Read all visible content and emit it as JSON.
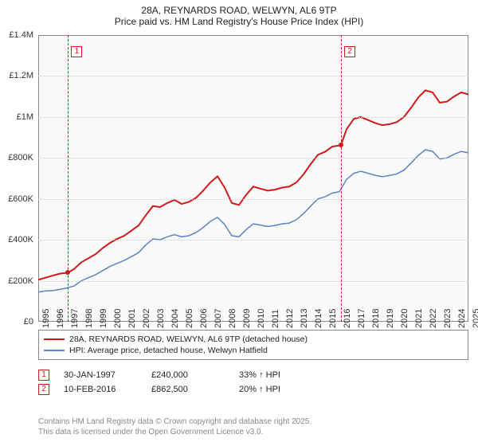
{
  "title": {
    "line1": "28A, REYNARDS ROAD, WELWYN, AL6 9TP",
    "line2": "Price paid vs. HM Land Registry's House Price Index (HPI)"
  },
  "chart": {
    "type": "line",
    "background_color": "#fafafa",
    "grid_color": "#cccccc",
    "y": {
      "min": 0,
      "max": 1400000,
      "step": 200000,
      "tick_labels": [
        "£0",
        "£200K",
        "£400K",
        "£600K",
        "£800K",
        "£1M",
        "£1.2M",
        "£1.4M"
      ]
    },
    "x": {
      "min": 1995,
      "max": 2025,
      "step": 1,
      "tick_labels": [
        "1995",
        "1996",
        "1997",
        "1998",
        "1999",
        "2000",
        "2001",
        "2002",
        "2003",
        "2004",
        "2005",
        "2006",
        "2007",
        "2008",
        "2009",
        "2010",
        "2011",
        "2012",
        "2013",
        "2014",
        "2015",
        "2016",
        "2017",
        "2018",
        "2019",
        "2020",
        "2021",
        "2022",
        "2023",
        "2024",
        "2025"
      ]
    },
    "series": [
      {
        "id": "price_paid",
        "label": "28A, REYNARDS ROAD, WELWYN, AL6 9TP (detached house)",
        "color": "#d11919",
        "width": 2,
        "points": [
          [
            1995,
            205000
          ],
          [
            1995.5,
            215000
          ],
          [
            1996,
            225000
          ],
          [
            1996.5,
            235000
          ],
          [
            1997.08,
            240000
          ],
          [
            1997.5,
            258000
          ],
          [
            1998,
            290000
          ],
          [
            1998.5,
            310000
          ],
          [
            1999,
            330000
          ],
          [
            1999.5,
            360000
          ],
          [
            2000,
            385000
          ],
          [
            2000.5,
            405000
          ],
          [
            2001,
            420000
          ],
          [
            2001.5,
            445000
          ],
          [
            2002,
            470000
          ],
          [
            2002.5,
            520000
          ],
          [
            2003,
            565000
          ],
          [
            2003.5,
            560000
          ],
          [
            2004,
            580000
          ],
          [
            2004.5,
            595000
          ],
          [
            2005,
            575000
          ],
          [
            2005.5,
            585000
          ],
          [
            2006,
            605000
          ],
          [
            2006.5,
            640000
          ],
          [
            2007,
            680000
          ],
          [
            2007.5,
            710000
          ],
          [
            2008,
            655000
          ],
          [
            2008.5,
            580000
          ],
          [
            2009,
            570000
          ],
          [
            2009.5,
            620000
          ],
          [
            2010,
            660000
          ],
          [
            2010.5,
            650000
          ],
          [
            2011,
            640000
          ],
          [
            2011.5,
            645000
          ],
          [
            2012,
            655000
          ],
          [
            2012.5,
            660000
          ],
          [
            2013,
            680000
          ],
          [
            2013.5,
            720000
          ],
          [
            2014,
            770000
          ],
          [
            2014.5,
            815000
          ],
          [
            2015,
            830000
          ],
          [
            2015.5,
            855000
          ],
          [
            2016.11,
            862500
          ],
          [
            2016.3,
            900000
          ],
          [
            2016.5,
            940000
          ],
          [
            2017,
            990000
          ],
          [
            2017.5,
            1000000
          ],
          [
            2018,
            985000
          ],
          [
            2018.5,
            970000
          ],
          [
            2019,
            960000
          ],
          [
            2019.5,
            965000
          ],
          [
            2020,
            975000
          ],
          [
            2020.5,
            1000000
          ],
          [
            2021,
            1045000
          ],
          [
            2021.5,
            1095000
          ],
          [
            2022,
            1130000
          ],
          [
            2022.5,
            1120000
          ],
          [
            2023,
            1070000
          ],
          [
            2023.5,
            1075000
          ],
          [
            2024,
            1100000
          ],
          [
            2024.5,
            1120000
          ],
          [
            2025,
            1110000
          ]
        ]
      },
      {
        "id": "hpi",
        "label": "HPI: Average price, detached house, Welwyn Hatfield",
        "color": "#5b84c4",
        "width": 1.5,
        "points": [
          [
            1995,
            145000
          ],
          [
            1995.5,
            150000
          ],
          [
            1996,
            152000
          ],
          [
            1996.5,
            158000
          ],
          [
            1997,
            165000
          ],
          [
            1997.5,
            175000
          ],
          [
            1998,
            200000
          ],
          [
            1998.5,
            215000
          ],
          [
            1999,
            230000
          ],
          [
            1999.5,
            250000
          ],
          [
            2000,
            270000
          ],
          [
            2000.5,
            285000
          ],
          [
            2001,
            300000
          ],
          [
            2001.5,
            318000
          ],
          [
            2002,
            338000
          ],
          [
            2002.5,
            375000
          ],
          [
            2003,
            405000
          ],
          [
            2003.5,
            400000
          ],
          [
            2004,
            415000
          ],
          [
            2004.5,
            425000
          ],
          [
            2005,
            415000
          ],
          [
            2005.5,
            420000
          ],
          [
            2006,
            435000
          ],
          [
            2006.5,
            460000
          ],
          [
            2007,
            490000
          ],
          [
            2007.5,
            510000
          ],
          [
            2008,
            475000
          ],
          [
            2008.5,
            420000
          ],
          [
            2009,
            415000
          ],
          [
            2009.5,
            450000
          ],
          [
            2010,
            478000
          ],
          [
            2010.5,
            472000
          ],
          [
            2011,
            465000
          ],
          [
            2011.5,
            470000
          ],
          [
            2012,
            478000
          ],
          [
            2012.5,
            482000
          ],
          [
            2013,
            498000
          ],
          [
            2013.5,
            528000
          ],
          [
            2014,
            565000
          ],
          [
            2014.5,
            600000
          ],
          [
            2015,
            610000
          ],
          [
            2015.5,
            628000
          ],
          [
            2016,
            635000
          ],
          [
            2016.5,
            695000
          ],
          [
            2017,
            725000
          ],
          [
            2017.5,
            735000
          ],
          [
            2018,
            725000
          ],
          [
            2018.5,
            715000
          ],
          [
            2019,
            708000
          ],
          [
            2019.5,
            714000
          ],
          [
            2020,
            722000
          ],
          [
            2020.5,
            740000
          ],
          [
            2021,
            775000
          ],
          [
            2021.5,
            812000
          ],
          [
            2022,
            840000
          ],
          [
            2022.5,
            832000
          ],
          [
            2023,
            795000
          ],
          [
            2023.5,
            800000
          ],
          [
            2024,
            818000
          ],
          [
            2024.5,
            832000
          ],
          [
            2025,
            825000
          ]
        ]
      }
    ],
    "sales": [
      {
        "n": "1",
        "year": 1997.08,
        "value": 240000,
        "date": "30-JAN-1997",
        "price": "£240,000",
        "delta": "33% ↑ HPI",
        "color": "#d11919"
      },
      {
        "n": "2",
        "year": 2016.11,
        "value": 862500,
        "date": "10-FEB-2016",
        "price": "£862,500",
        "delta": "20% ↑ HPI",
        "color": "#d11919"
      }
    ]
  },
  "legend": {
    "series1": "28A, REYNARDS ROAD, WELWYN, AL6 9TP (detached house)",
    "series2": "HPI: Average price, detached house, Welwyn Hatfield"
  },
  "attribution": {
    "line1": "Contains HM Land Registry data © Crown copyright and database right 2025.",
    "line2": "This data is licensed under the Open Government Licence v3.0."
  }
}
